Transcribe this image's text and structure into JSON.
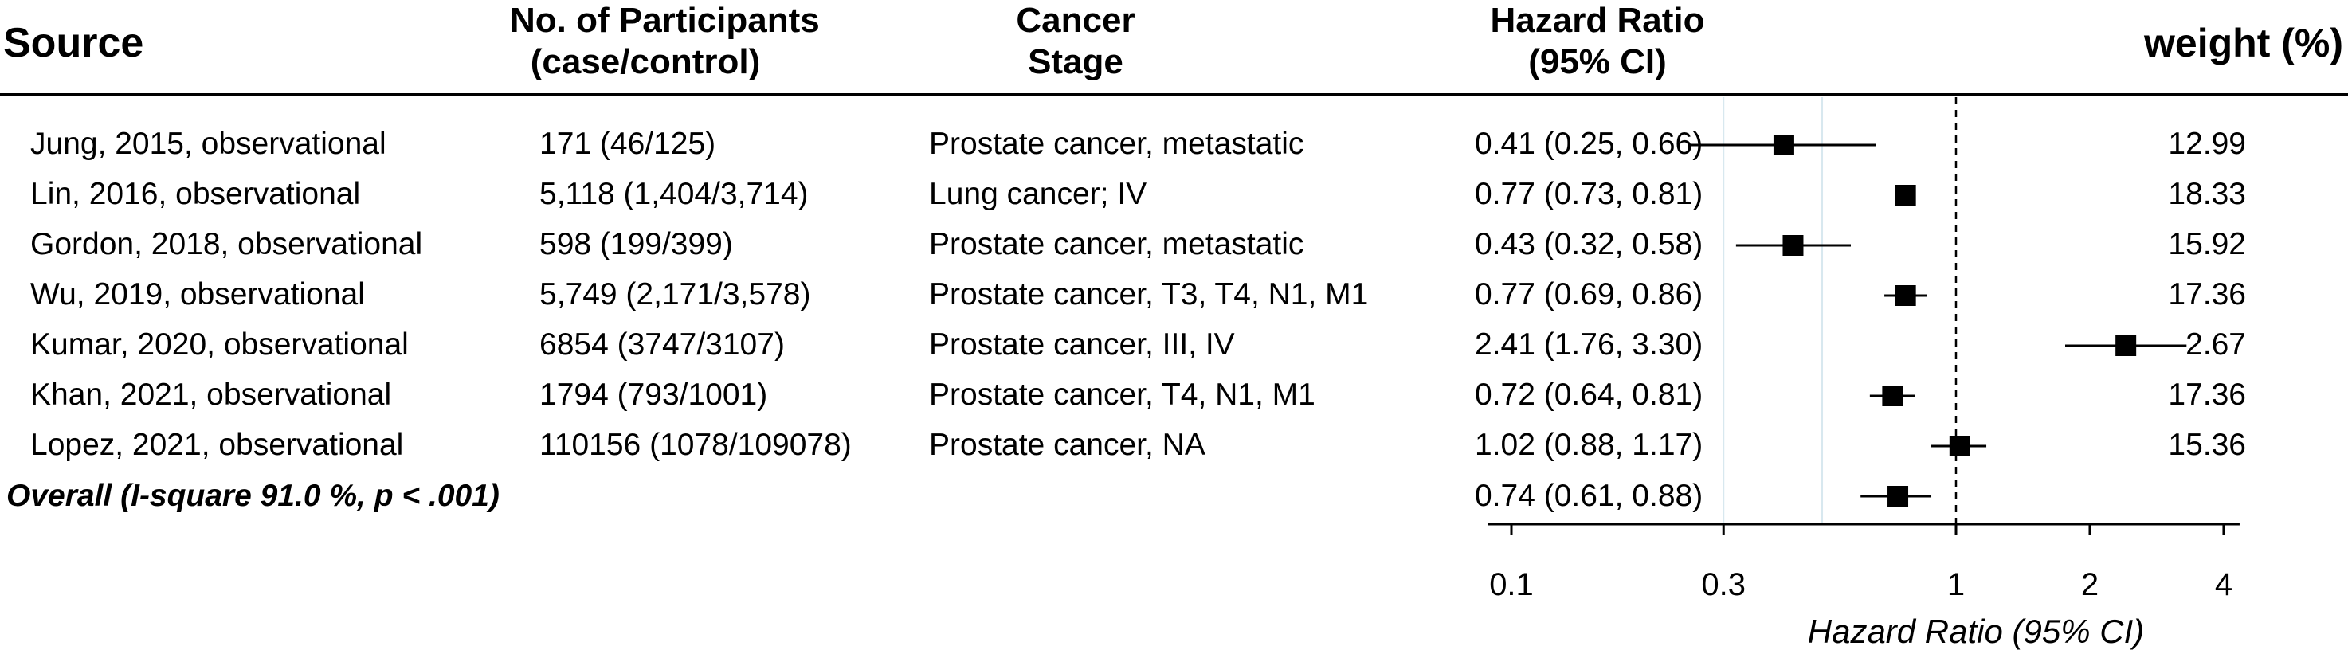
{
  "headers": {
    "source": "Source",
    "participants_line1": "No. of Participants",
    "participants_line2": "(case/control)",
    "stage_line1": "Cancer",
    "stage_line2": "Stage",
    "hr_line1": "Hazard Ratio",
    "hr_line2": "(95% CI)",
    "weight": "weight (%)"
  },
  "rows": [
    {
      "source": "Jung, 2015, observational",
      "participants": "171 (46/125)",
      "stage": "Prostate cancer, metastatic",
      "hr_text": "0.41 (0.25, 0.66)",
      "weight": "12.99"
    },
    {
      "source": "Lin, 2016, observational",
      "participants": "5,118 (1,404/3,714)",
      "stage": "Lung cancer; IV",
      "hr_text": "0.77 (0.73, 0.81)",
      "weight": "18.33"
    },
    {
      "source": "Gordon, 2018, observational",
      "participants": "598 (199/399)",
      "stage": "Prostate cancer, metastatic",
      "hr_text": "0.43 (0.32, 0.58)",
      "weight": "15.92"
    },
    {
      "source": "Wu, 2019, observational",
      "participants": "5,749 (2,171/3,578)",
      "stage": "Prostate cancer, T3, T4, N1, M1",
      "hr_text": "0.77 (0.69, 0.86)",
      "weight": "17.36"
    },
    {
      "source": "Kumar, 2020, observational",
      "participants": "6854 (3747/3107)",
      "stage": "Prostate cancer, III, IV",
      "hr_text": "2.41 (1.76, 3.30)",
      "weight": "2.67"
    },
    {
      "source": "Khan, 2021, observational",
      "participants": "1794 (793/1001)",
      "stage": "Prostate cancer, T4, N1, M1",
      "hr_text": "0.72 (0.64, 0.81)",
      "weight": "17.36"
    },
    {
      "source": "Lopez, 2021, observational",
      "participants": "110156 (1078/109078)",
      "stage": "Prostate cancer, NA",
      "hr_text": "1.02 (0.88, 1.17)",
      "weight": "15.36"
    }
  ],
  "overall": {
    "label": "Overall (I-square 91.0 %, p < .001)",
    "hr_text": "0.74 (0.61, 0.88)"
  },
  "chart_data": {
    "type": "forest",
    "scale": "log",
    "xlabel": "Hazard Ratio (95% CI)",
    "xlim": [
      0.1,
      4
    ],
    "ticks": [
      0.1,
      0.3,
      1,
      2,
      4
    ],
    "tick_labels": [
      "0.1",
      "0.3",
      "1",
      "2",
      "4"
    ],
    "reference_line": 1,
    "points": [
      {
        "study": "Jung, 2015",
        "hr": 0.41,
        "lo": 0.25,
        "hi": 0.66,
        "weight": 12.99
      },
      {
        "study": "Lin, 2016",
        "hr": 0.77,
        "lo": 0.73,
        "hi": 0.81,
        "weight": 18.33
      },
      {
        "study": "Gordon, 2018",
        "hr": 0.43,
        "lo": 0.32,
        "hi": 0.58,
        "weight": 15.92
      },
      {
        "study": "Wu, 2019",
        "hr": 0.77,
        "lo": 0.69,
        "hi": 0.86,
        "weight": 17.36
      },
      {
        "study": "Kumar, 2020",
        "hr": 2.41,
        "lo": 1.76,
        "hi": 3.3,
        "weight": 2.67
      },
      {
        "study": "Khan, 2021",
        "hr": 0.72,
        "lo": 0.64,
        "hi": 0.81,
        "weight": 17.36
      },
      {
        "study": "Lopez, 2021",
        "hr": 1.02,
        "lo": 0.88,
        "hi": 1.17,
        "weight": 15.36
      }
    ],
    "overall": {
      "hr": 0.74,
      "lo": 0.61,
      "hi": 0.88
    }
  }
}
